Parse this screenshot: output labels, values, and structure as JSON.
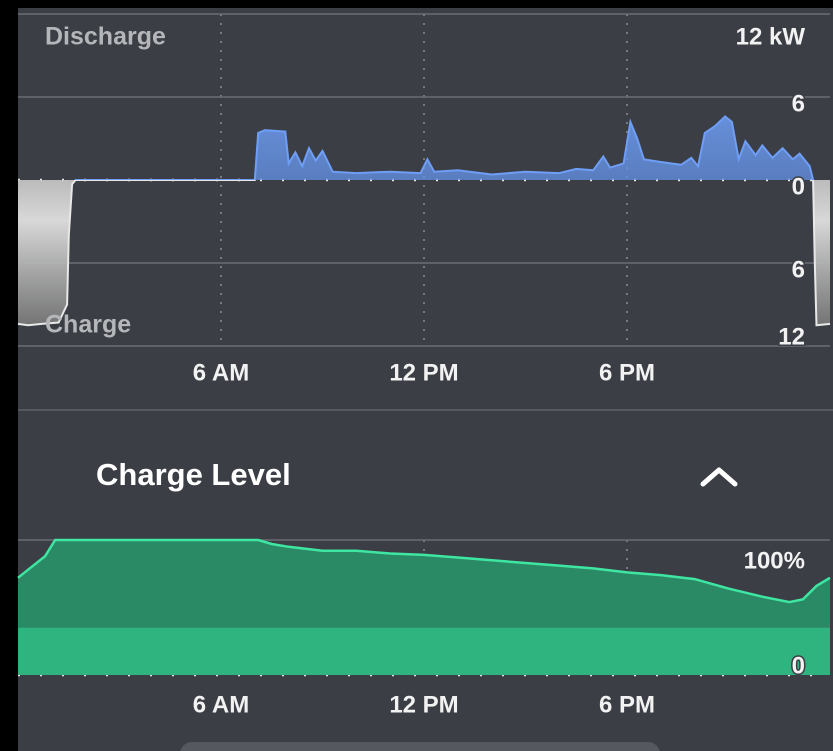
{
  "chart_data": [
    {
      "type": "area",
      "upper_label": "Discharge",
      "lower_label": "Charge",
      "x": [
        0,
        0.3,
        0.7,
        1.2,
        1.45,
        1.5,
        1.6,
        1.7,
        7.0,
        7.1,
        7.3,
        7.9,
        8.0,
        8.2,
        8.4,
        8.6,
        8.8,
        9.0,
        9.3,
        10,
        11,
        11.9,
        12.1,
        12.3,
        13,
        14,
        15,
        16,
        16.5,
        17,
        17.3,
        17.5,
        17.9,
        18.1,
        18.3,
        18.5,
        19,
        19.6,
        19.9,
        20.1,
        20.3,
        20.6,
        20.9,
        21.1,
        21.3,
        21.5,
        21.8,
        22,
        22.3,
        22.6,
        22.9,
        23.1,
        23.4,
        23.5,
        23.55,
        23.6,
        24
      ],
      "values": [
        -10.4,
        -10.5,
        -10.4,
        -10.3,
        -9,
        -4,
        -0.3,
        0,
        0,
        3.4,
        3.6,
        3.5,
        1.2,
        2.0,
        1.0,
        2.3,
        1.4,
        2.1,
        0.6,
        0.5,
        0.6,
        0.5,
        1.5,
        0.6,
        0.7,
        0.4,
        0.6,
        0.5,
        0.8,
        0.7,
        1.7,
        0.9,
        1.2,
        4.2,
        3.0,
        1.5,
        1.3,
        1.1,
        1.6,
        1.0,
        3.4,
        3.9,
        4.6,
        4.2,
        1.5,
        2.8,
        1.8,
        2.5,
        1.6,
        2.3,
        1.5,
        1.9,
        1.0,
        0,
        -6,
        -10.5,
        -10.4
      ],
      "color": "#6e9ef5",
      "xlim": [
        0,
        24
      ],
      "xticks": [
        {
          "value": 6,
          "label": "6 AM"
        },
        {
          "value": 12,
          "label": "12 PM"
        },
        {
          "value": 18,
          "label": "6 PM"
        }
      ],
      "ylim": [
        -12,
        12
      ],
      "yticks": [
        {
          "value": 12,
          "label": "12 kW"
        },
        6,
        0,
        {
          "value": -6,
          "label": "6"
        },
        {
          "value": -12,
          "label": "12"
        }
      ],
      "grid": true
    },
    {
      "type": "area",
      "title": "Charge Level",
      "x": [
        0,
        0.3,
        0.8,
        1.1,
        3,
        6,
        7.1,
        7.5,
        8,
        9,
        10,
        11,
        12,
        13,
        14,
        15,
        16,
        17,
        18,
        19,
        20,
        21,
        22,
        22.8,
        23.2,
        23.6,
        24
      ],
      "values": [
        72,
        78,
        88,
        100,
        100,
        100,
        100,
        97,
        95,
        92,
        92,
        90,
        89,
        87,
        85,
        83,
        81,
        79,
        76,
        74,
        71,
        64,
        58,
        54,
        56,
        66,
        72
      ],
      "color": "#3ee6a2",
      "reserve": 35,
      "xlim": [
        0,
        24
      ],
      "xticks": [
        {
          "value": 6,
          "label": "6 AM"
        },
        {
          "value": 12,
          "label": "12 PM"
        },
        {
          "value": 18,
          "label": "6 PM"
        }
      ],
      "ylim": [
        0,
        100
      ],
      "yticks": [
        {
          "value": 100,
          "label": "100%"
        },
        0
      ],
      "grid": true
    }
  ]
}
